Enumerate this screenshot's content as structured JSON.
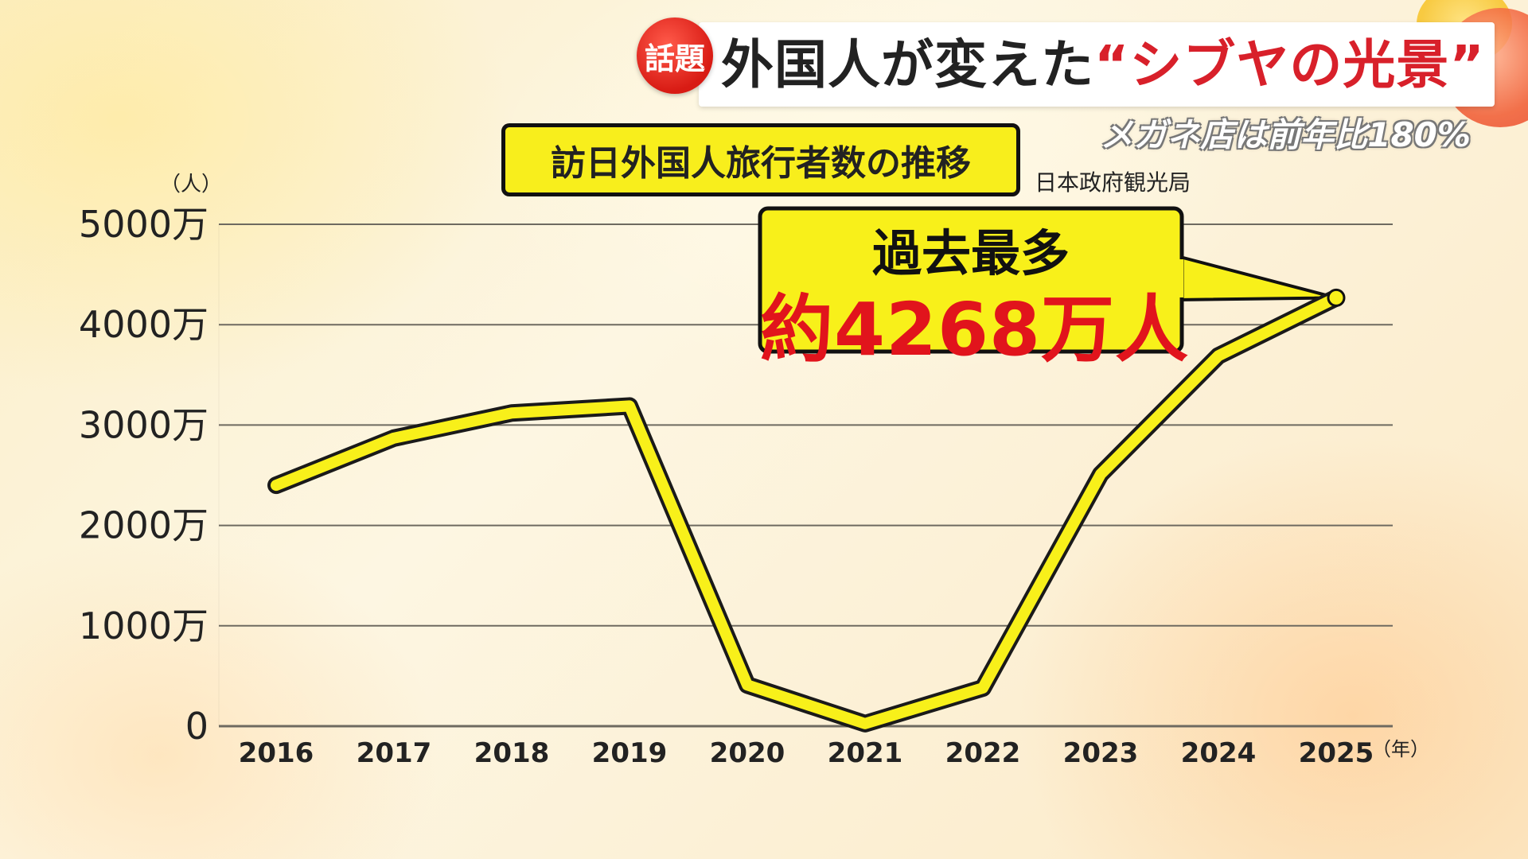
{
  "header": {
    "topic_badge": "話題",
    "headline_main": "外国人が変えた",
    "headline_accent": "“シブヤの光景”",
    "subheadline": "メガネ店は前年比180%"
  },
  "chart_title": "訪日外国人旅行者数の推移",
  "source": "日本政府観光局",
  "callout": {
    "line1": "過去最多",
    "line2": "約4268万人"
  },
  "colors": {
    "line": "#f8f01a",
    "line_outline": "#1a1a1a",
    "callout_bg": "#f8f01a",
    "accent_red": "#e1141c",
    "grid": "#6e6a60"
  },
  "chart_data": {
    "type": "line",
    "title": "訪日外国人旅行者数の推移",
    "y_unit_label": "（人）",
    "x_unit_label": "（年）",
    "categories": [
      "2016",
      "2017",
      "2018",
      "2019",
      "2020",
      "2021",
      "2022",
      "2023",
      "2024",
      "2025"
    ],
    "values": [
      24000000,
      28700000,
      31200000,
      31900000,
      4100000,
      250000,
      3800000,
      25100000,
      36900000,
      42680000
    ],
    "ylim": [
      0,
      50000000
    ],
    "yticks": [
      0,
      10000000,
      20000000,
      30000000,
      40000000,
      50000000
    ],
    "ytick_labels": [
      "0",
      "1000万",
      "2000万",
      "3000万",
      "4000万",
      "5000万"
    ],
    "grid": "horizontal",
    "legend": "none"
  }
}
